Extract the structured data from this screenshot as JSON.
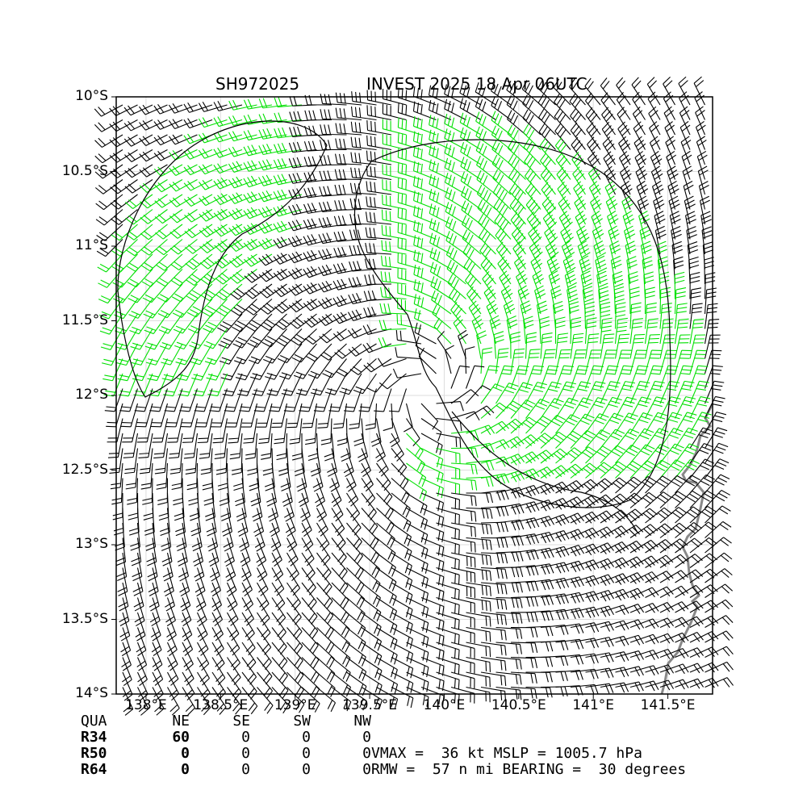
{
  "header": {
    "storm_id": "SH972025",
    "storm_info": "INVEST 2025 18 Apr 06UTC"
  },
  "axes": {
    "lat_labels": [
      "10°S",
      "10.5°S",
      "11°S",
      "11.5°S",
      "12°S",
      "12.5°S",
      "13°S",
      "13.5°S",
      "14°S"
    ],
    "lon_labels": [
      "138°E",
      "138.5°E",
      "139°E",
      "139.5°E",
      "140°E",
      "140.5°E",
      "141°E",
      "141.5°E"
    ]
  },
  "wind_radii": {
    "headers": [
      "QUA",
      "NE",
      "SE",
      "SW",
      "NW"
    ],
    "rows": [
      {
        "label": "R34",
        "values": [
          "60",
          "0",
          "0",
          "0"
        ]
      },
      {
        "label": "R50",
        "values": [
          "0",
          "0",
          "0",
          "0"
        ]
      },
      {
        "label": "R64",
        "values": [
          "0",
          "0",
          "0",
          "0"
        ]
      }
    ]
  },
  "stats": {
    "line1": "VMAX =  36 kt MSLP = 1005.7 hPa",
    "line2": "RMW =  57 n mi BEARING =  30 degrees"
  },
  "storm": {
    "center_lat": -11.95,
    "center_lon": 139.9,
    "extent": {
      "lat_top": -10,
      "lat_bottom": -14,
      "lon_left": 137.8,
      "lon_right": 141.8
    }
  },
  "colors": {
    "calm_barb": "#000000",
    "gale_barb": "#00e000",
    "storm_barb": "#f0a000",
    "coast": "#888888",
    "grid": "#dddddd"
  }
}
